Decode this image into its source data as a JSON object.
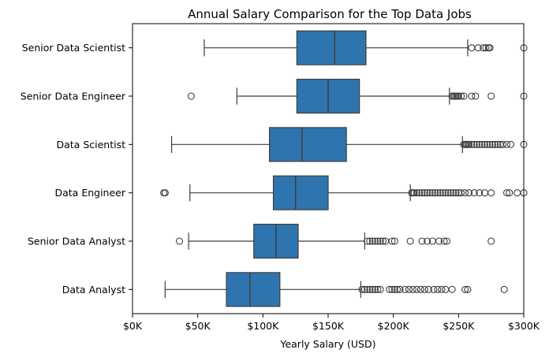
{
  "chart_data": {
    "type": "box",
    "title": "Annual Salary Comparison for the Top Data Jobs",
    "xlabel": "Yearly Salary (USD)",
    "ylabel": "",
    "xlim": [
      0,
      300000
    ],
    "x_ticks": [
      0,
      50000,
      100000,
      150000,
      200000,
      250000,
      300000
    ],
    "x_tick_labels": [
      "$0K",
      "$50K",
      "$100K",
      "$150K",
      "$200K",
      "$250K",
      "$300K"
    ],
    "grid": false,
    "box_color": "#2e75b0",
    "line_color": "#3d3d3d",
    "categories": [
      "Senior Data Scientist",
      "Senior Data Engineer",
      "Data Scientist",
      "Data Engineer",
      "Senior Data Analyst",
      "Data Analyst"
    ],
    "boxes": [
      {
        "label": "Senior Data Scientist",
        "whisker_low": 55000,
        "q1": 126000,
        "median": 155000,
        "q3": 179000,
        "whisker_high": 257000,
        "outliers": [
          260000,
          265000,
          269000,
          271000,
          273000,
          274000,
          300000
        ]
      },
      {
        "label": "Senior Data Engineer",
        "whisker_low": 80000,
        "q1": 126000,
        "median": 150000,
        "q3": 174000,
        "whisker_high": 243000,
        "outliers": [
          45000,
          245000,
          246000,
          247000,
          248000,
          249000,
          250000,
          252000,
          254000,
          260000,
          263000,
          275000,
          300000
        ]
      },
      {
        "label": "Data Scientist",
        "whisker_low": 30000,
        "q1": 105000,
        "median": 130000,
        "q3": 164000,
        "whisker_high": 253000,
        "outliers": [
          254000,
          255000,
          256000,
          257000,
          258000,
          260000,
          262000,
          264000,
          266000,
          268000,
          270000,
          272000,
          274000,
          276000,
          278000,
          280000,
          282000,
          284000,
          287000,
          290000,
          300000
        ]
      },
      {
        "label": "Data Engineer",
        "whisker_low": 44000,
        "q1": 108000,
        "median": 125000,
        "q3": 150000,
        "whisker_high": 213000,
        "outliers": [
          24000,
          25000,
          214000,
          215000,
          216000,
          218000,
          220000,
          222000,
          224000,
          226000,
          228000,
          230000,
          232000,
          234000,
          236000,
          238000,
          240000,
          242000,
          244000,
          246000,
          248000,
          250000,
          252000,
          255000,
          258000,
          262000,
          266000,
          270000,
          275000,
          287000,
          289000,
          295000,
          300000
        ]
      },
      {
        "label": "Senior Data Analyst",
        "whisker_low": 43000,
        "q1": 93000,
        "median": 110000,
        "q3": 127000,
        "whisker_high": 178000,
        "outliers": [
          36000,
          180000,
          182000,
          184000,
          186000,
          188000,
          190000,
          192000,
          194000,
          199000,
          201000,
          213000,
          222000,
          226000,
          230000,
          235000,
          239000,
          241000,
          275000
        ]
      },
      {
        "label": "Data Analyst",
        "whisker_low": 25000,
        "q1": 72000,
        "median": 90000,
        "q3": 113000,
        "whisker_high": 175000,
        "outliers": [
          176000,
          178000,
          180000,
          182000,
          184000,
          186000,
          188000,
          190000,
          197000,
          199000,
          201000,
          203000,
          205000,
          209000,
          212000,
          215000,
          218000,
          221000,
          224000,
          227000,
          231000,
          234000,
          237000,
          240000,
          245000,
          255000,
          257000,
          285000
        ]
      }
    ]
  }
}
